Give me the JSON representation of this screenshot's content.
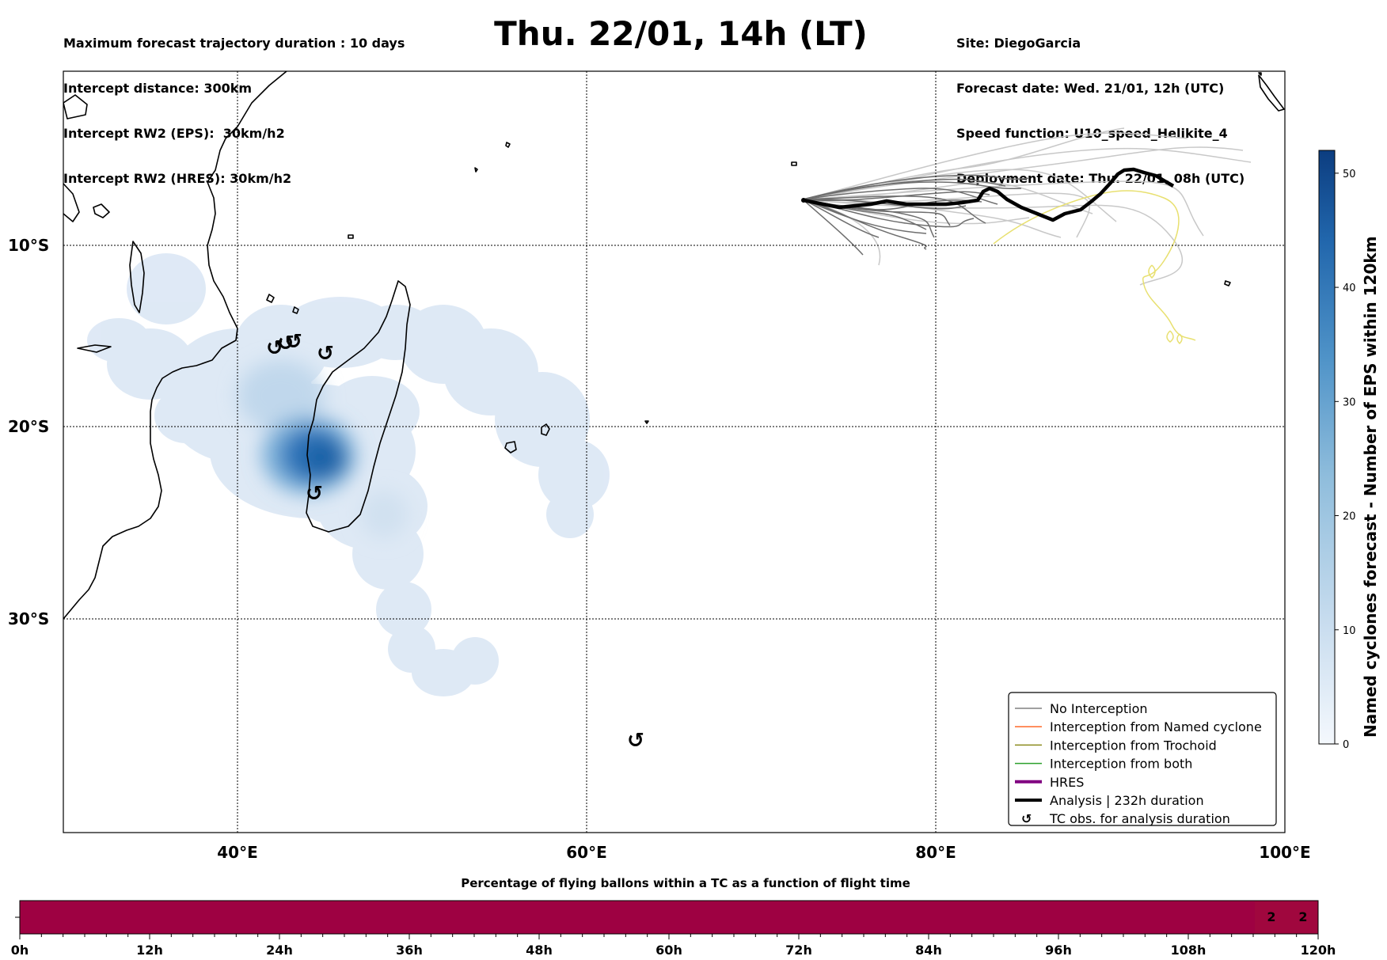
{
  "header_left": [
    "Maximum forecast trajectory duration : 10 days",
    "Intercept distance: 300km",
    "Intercept RW2 (EPS):  30km/h2",
    "Intercept RW2 (HRES): 30km/h2"
  ],
  "title": "Thu. 22/01, 14h (LT)",
  "header_right": [
    "Site: DiegoGarcia",
    "Forecast date: Wed. 21/01, 12h (UTC)",
    "Speed function: U10_speed_Helikite_4",
    "Deployment date: Thu. 22/01, 08h (UTC)"
  ],
  "map": {
    "lon_labels": [
      "40°E",
      "60°E",
      "80°E",
      "100°E"
    ],
    "lat_labels": [
      "10°S",
      "20°S",
      "30°S"
    ],
    "colors": {
      "eps_members": "#6e6e6e",
      "eps_members_light": "#c8c8c8",
      "analysis": "#000000",
      "yellow_track": "#e8e070",
      "density_light": "#dde8f5",
      "density_dark": "#1f5fa8"
    }
  },
  "colorbar": {
    "label": "Named cyclones forecast - Number of EPS within 120km",
    "ticks": [
      "0",
      "10",
      "20",
      "30",
      "40",
      "50"
    ],
    "min": 0,
    "max": 52
  },
  "legend": {
    "items": [
      {
        "label": "No Interception",
        "color": "#808080",
        "style": "thin"
      },
      {
        "label": "Interception from Named cyclone",
        "color": "#ff6a2a",
        "style": "thin"
      },
      {
        "label": "Interception from Trochoid",
        "color": "#8b8b1e",
        "style": "thin"
      },
      {
        "label": "Interception from both",
        "color": "#2ca02c",
        "style": "thin"
      },
      {
        "label": "HRES",
        "color": "#800080",
        "style": "thick"
      },
      {
        "label": "Analysis | 232h duration",
        "color": "#000000",
        "style": "thick"
      },
      {
        "label": "TC obs. for analysis duration",
        "color": "#000000",
        "style": "symbol",
        "symbol": "↺"
      }
    ]
  },
  "bottom_bar": {
    "title": "Percentage of flying ballons within a TC as a function of flight time",
    "tick_labels": [
      "0h",
      "12h",
      "24h",
      "36h",
      "48h",
      "60h",
      "72h",
      "84h",
      "96h",
      "108h",
      "120h"
    ],
    "values": [
      "2",
      "2"
    ],
    "main_color": "#9e0142",
    "end_color": "#a0073e"
  }
}
